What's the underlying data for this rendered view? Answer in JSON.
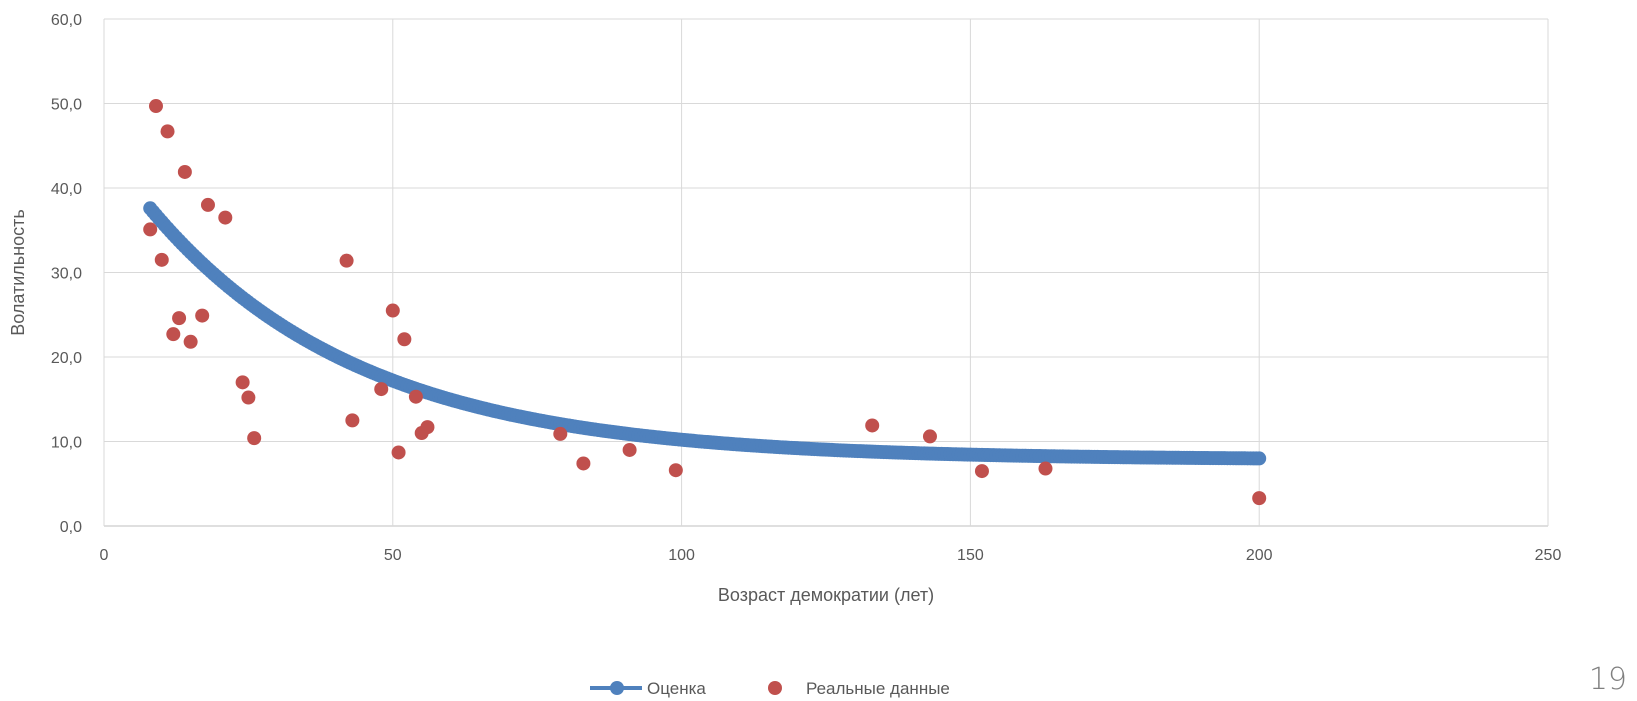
{
  "chart_data": {
    "type": "scatter",
    "xlabel": "Возраст демократии (лет)",
    "ylabel": "Волатильность",
    "xlim": [
      0,
      250
    ],
    "ylim": [
      0,
      60
    ],
    "x_ticks": [
      "0",
      "50",
      "100",
      "150",
      "200",
      "250"
    ],
    "y_ticks": [
      "0,0",
      "10,0",
      "20,0",
      "30,0",
      "40,0",
      "50,0",
      "60,0"
    ],
    "grid": true,
    "legend_position": "bottom",
    "series": [
      {
        "name": "Оценка",
        "kind": "line-with-markers",
        "color": "#4F81BD",
        "x_range": [
          8,
          200
        ],
        "y_start": 37.6,
        "y_end": 8.0,
        "points": [
          [
            8,
            37.6
          ],
          [
            10,
            35.5
          ],
          [
            15,
            31.2
          ],
          [
            20,
            27.4
          ],
          [
            30,
            21.3
          ],
          [
            40,
            17.3
          ],
          [
            50,
            14.5
          ],
          [
            60,
            12.4
          ],
          [
            70,
            11.2
          ],
          [
            80,
            10.2
          ],
          [
            90,
            9.5
          ],
          [
            100,
            9.1
          ],
          [
            120,
            8.6
          ],
          [
            140,
            8.3
          ],
          [
            160,
            8.1
          ],
          [
            180,
            8.0
          ],
          [
            200,
            8.0
          ]
        ]
      },
      {
        "name": "Реальные данные",
        "kind": "markers",
        "color": "#C0504D",
        "points": [
          [
            8,
            35.1
          ],
          [
            9,
            49.7
          ],
          [
            10,
            31.5
          ],
          [
            11,
            46.7
          ],
          [
            12,
            22.7
          ],
          [
            13,
            24.6
          ],
          [
            14,
            41.9
          ],
          [
            15,
            21.8
          ],
          [
            17,
            24.9
          ],
          [
            18,
            38.0
          ],
          [
            21,
            36.5
          ],
          [
            24,
            17.0
          ],
          [
            25,
            15.2
          ],
          [
            26,
            10.4
          ],
          [
            42,
            31.4
          ],
          [
            43,
            12.5
          ],
          [
            48,
            16.2
          ],
          [
            50,
            25.5
          ],
          [
            51,
            8.7
          ],
          [
            52,
            22.1
          ],
          [
            54,
            15.3
          ],
          [
            55,
            11.0
          ],
          [
            56,
            11.7
          ],
          [
            79,
            10.9
          ],
          [
            83,
            7.4
          ],
          [
            91,
            9.0
          ],
          [
            99,
            6.6
          ],
          [
            133,
            11.9
          ],
          [
            143,
            10.6
          ],
          [
            152,
            6.5
          ],
          [
            163,
            6.8
          ],
          [
            200,
            3.3
          ]
        ]
      }
    ]
  },
  "page": {
    "number": "19"
  }
}
